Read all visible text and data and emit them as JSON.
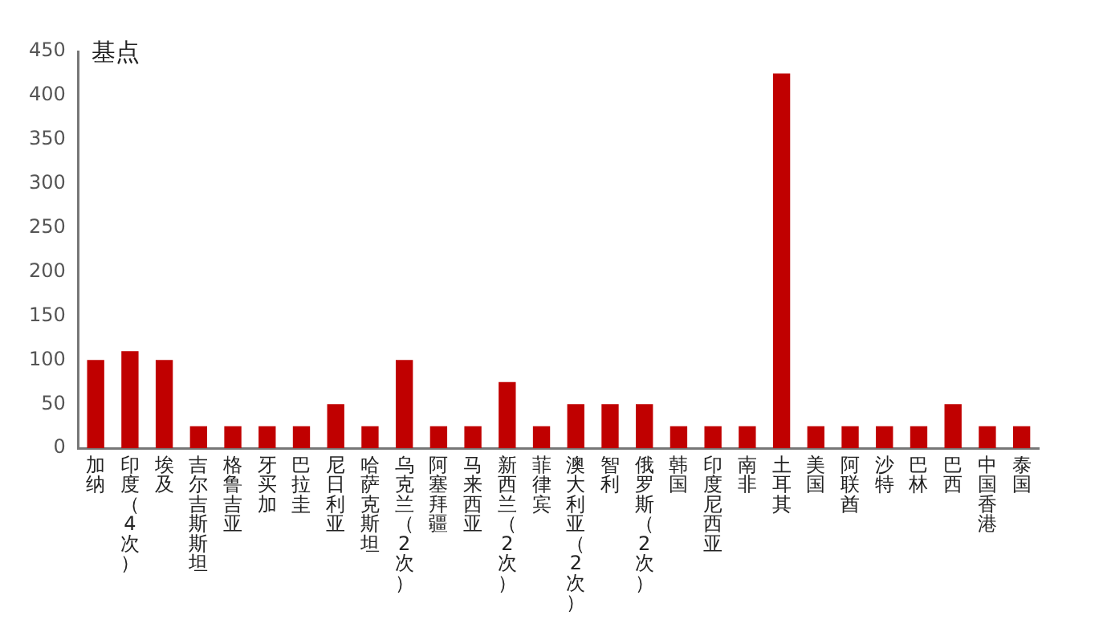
{
  "chart_data": {
    "type": "bar",
    "ylabel": "基点",
    "categories": [
      "加纳",
      "印度（4次）",
      "埃及",
      "吉尔吉斯斯坦",
      "格鲁吉亚",
      "牙买加",
      "巴拉圭",
      "尼日利亚",
      "哈萨克斯坦",
      "乌克兰（2次）",
      "阿塞拜疆",
      "马来西亚",
      "新西兰（2次）",
      "菲律宾",
      "澳大利亚（2次）",
      "智利",
      "俄罗斯（2次）",
      "韩国",
      "印度尼西亚",
      "南非",
      "土耳其",
      "美国",
      "阿联酋",
      "沙特",
      "巴林",
      "巴西",
      "中国香港",
      "泰国"
    ],
    "values": [
      100,
      110,
      100,
      25,
      25,
      25,
      25,
      50,
      25,
      100,
      25,
      25,
      75,
      25,
      50,
      50,
      50,
      25,
      25,
      25,
      425,
      25,
      25,
      25,
      25,
      50,
      25,
      25
    ],
    "color": "#c00000",
    "ylim": [
      0,
      450
    ],
    "yticks": [
      0,
      50,
      100,
      150,
      200,
      250,
      300,
      350,
      400,
      450
    ],
    "grid": false,
    "legend": false
  }
}
